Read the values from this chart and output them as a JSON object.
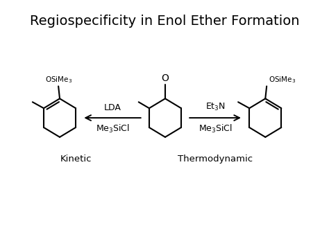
{
  "title": "Regiospecificity in Enol Ether Formation",
  "title_fontsize": 14,
  "background_color": "#ffffff",
  "line_color": "#000000",
  "lw": 1.5,
  "arrow_left_label_top": "LDA",
  "arrow_left_label_bot": "Me$_3$SiCl",
  "arrow_right_label_top": "Et$_3$N",
  "arrow_right_label_bot": "Me$_3$SiCl",
  "label_kinetic": "Kinetic",
  "label_thermodynamic": "Thermodynamic",
  "label_OSiMe3": "OSiMe$_3$",
  "label_O": "O",
  "fig_width": 4.74,
  "fig_height": 3.55,
  "dpi": 100
}
